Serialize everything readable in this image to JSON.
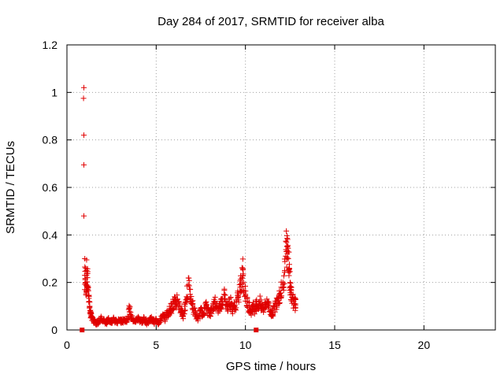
{
  "chart_data": {
    "type": "scatter",
    "title": "Day 284 of 2017, SRMTID for receiver alba",
    "xlabel": "GPS time / hours",
    "ylabel": "SRMTID / TECUs",
    "xlim": [
      0,
      24
    ],
    "ylim": [
      0,
      1.2
    ],
    "xticks": [
      "0",
      "5",
      "10",
      "15",
      "20"
    ],
    "yticks": [
      "0",
      "0.2",
      "0.4",
      "0.6",
      "0.8",
      "1",
      "1.2"
    ],
    "grid": true,
    "marker": "+",
    "color": "#e00000",
    "series": [
      {
        "outliers": [
          [
            0.95,
            1.02
          ],
          [
            0.93,
            0.975
          ],
          [
            0.95,
            0.82
          ],
          [
            0.95,
            0.695
          ],
          [
            0.95,
            0.48
          ],
          [
            1.0,
            0.3
          ],
          [
            1.1,
            0.295
          ],
          [
            1.05,
            0.26
          ],
          [
            1.1,
            0.25
          ],
          [
            1.0,
            0.17
          ],
          [
            1.1,
            0.16
          ]
        ],
        "points": [
          [
            1.0,
            0.23
          ],
          [
            1.05,
            0.2
          ],
          [
            1.1,
            0.19
          ],
          [
            1.15,
            0.22
          ],
          [
            1.2,
            0.18
          ],
          [
            1.25,
            0.12
          ],
          [
            1.3,
            0.08
          ],
          [
            1.35,
            0.06
          ],
          [
            1.4,
            0.05
          ],
          [
            1.5,
            0.04
          ],
          [
            1.6,
            0.035
          ],
          [
            1.7,
            0.03
          ],
          [
            1.8,
            0.04
          ],
          [
            1.9,
            0.05
          ],
          [
            2.0,
            0.035
          ],
          [
            2.1,
            0.04
          ],
          [
            2.2,
            0.03
          ],
          [
            2.3,
            0.045
          ],
          [
            2.4,
            0.04
          ],
          [
            2.5,
            0.035
          ],
          [
            2.6,
            0.05
          ],
          [
            2.7,
            0.04
          ],
          [
            2.8,
            0.03
          ],
          [
            2.9,
            0.045
          ],
          [
            3.0,
            0.04
          ],
          [
            3.1,
            0.035
          ],
          [
            3.2,
            0.045
          ],
          [
            3.3,
            0.04
          ],
          [
            3.4,
            0.05
          ],
          [
            3.5,
            0.09
          ],
          [
            3.6,
            0.06
          ],
          [
            3.7,
            0.04
          ],
          [
            3.8,
            0.035
          ],
          [
            3.9,
            0.045
          ],
          [
            4.0,
            0.05
          ],
          [
            4.1,
            0.04
          ],
          [
            4.2,
            0.035
          ],
          [
            4.3,
            0.045
          ],
          [
            4.4,
            0.04
          ],
          [
            4.5,
            0.03
          ],
          [
            4.6,
            0.04
          ],
          [
            4.7,
            0.05
          ],
          [
            4.8,
            0.04
          ],
          [
            4.9,
            0.035
          ],
          [
            5.0,
            0.045
          ],
          [
            5.1,
            0.03
          ],
          [
            5.2,
            0.04
          ],
          [
            5.3,
            0.05
          ],
          [
            5.4,
            0.06
          ],
          [
            5.5,
            0.05
          ],
          [
            5.6,
            0.07
          ],
          [
            5.7,
            0.08
          ],
          [
            5.8,
            0.09
          ],
          [
            5.9,
            0.1
          ],
          [
            6.0,
            0.12
          ],
          [
            6.1,
            0.11
          ],
          [
            6.2,
            0.13
          ],
          [
            6.3,
            0.1
          ],
          [
            6.4,
            0.08
          ],
          [
            6.5,
            0.06
          ],
          [
            6.6,
            0.1
          ],
          [
            6.7,
            0.14
          ],
          [
            6.8,
            0.19
          ],
          [
            6.9,
            0.15
          ],
          [
            7.0,
            0.12
          ],
          [
            7.1,
            0.09
          ],
          [
            7.2,
            0.07
          ],
          [
            7.3,
            0.05
          ],
          [
            7.4,
            0.06
          ],
          [
            7.5,
            0.08
          ],
          [
            7.6,
            0.07
          ],
          [
            7.7,
            0.09
          ],
          [
            7.8,
            0.1
          ],
          [
            7.9,
            0.08
          ],
          [
            8.0,
            0.07
          ],
          [
            8.1,
            0.09
          ],
          [
            8.2,
            0.1
          ],
          [
            8.3,
            0.12
          ],
          [
            8.4,
            0.1
          ],
          [
            8.5,
            0.09
          ],
          [
            8.6,
            0.11
          ],
          [
            8.7,
            0.13
          ],
          [
            8.8,
            0.15
          ],
          [
            8.9,
            0.12
          ],
          [
            9.0,
            0.1
          ],
          [
            9.1,
            0.13
          ],
          [
            9.2,
            0.11
          ],
          [
            9.3,
            0.09
          ],
          [
            9.4,
            0.1
          ],
          [
            9.5,
            0.12
          ],
          [
            9.6,
            0.14
          ],
          [
            9.7,
            0.18
          ],
          [
            9.8,
            0.22
          ],
          [
            9.85,
            0.26
          ],
          [
            9.9,
            0.2
          ],
          [
            10.0,
            0.15
          ],
          [
            10.1,
            0.12
          ],
          [
            10.2,
            0.1
          ],
          [
            10.3,
            0.08
          ],
          [
            10.4,
            0.1
          ],
          [
            10.5,
            0.09
          ],
          [
            10.6,
            0.11
          ],
          [
            10.7,
            0.1
          ],
          [
            10.8,
            0.12
          ],
          [
            10.9,
            0.1
          ],
          [
            11.0,
            0.09
          ],
          [
            11.1,
            0.11
          ],
          [
            11.2,
            0.13
          ],
          [
            11.3,
            0.1
          ],
          [
            11.4,
            0.08
          ],
          [
            11.5,
            0.07
          ],
          [
            11.6,
            0.09
          ],
          [
            11.7,
            0.11
          ],
          [
            11.8,
            0.13
          ],
          [
            11.9,
            0.15
          ],
          [
            12.0,
            0.18
          ],
          [
            12.1,
            0.2
          ],
          [
            12.2,
            0.25
          ],
          [
            12.3,
            0.37
          ],
          [
            12.35,
            0.35
          ],
          [
            12.4,
            0.3
          ],
          [
            12.45,
            0.26
          ],
          [
            12.5,
            0.2
          ],
          [
            12.55,
            0.17
          ],
          [
            12.6,
            0.15
          ],
          [
            12.7,
            0.12
          ],
          [
            12.8,
            0.11
          ]
        ]
      }
    ],
    "markers_square": [
      [
        0.85,
        0.0
      ],
      [
        10.6,
        0.0
      ]
    ]
  }
}
